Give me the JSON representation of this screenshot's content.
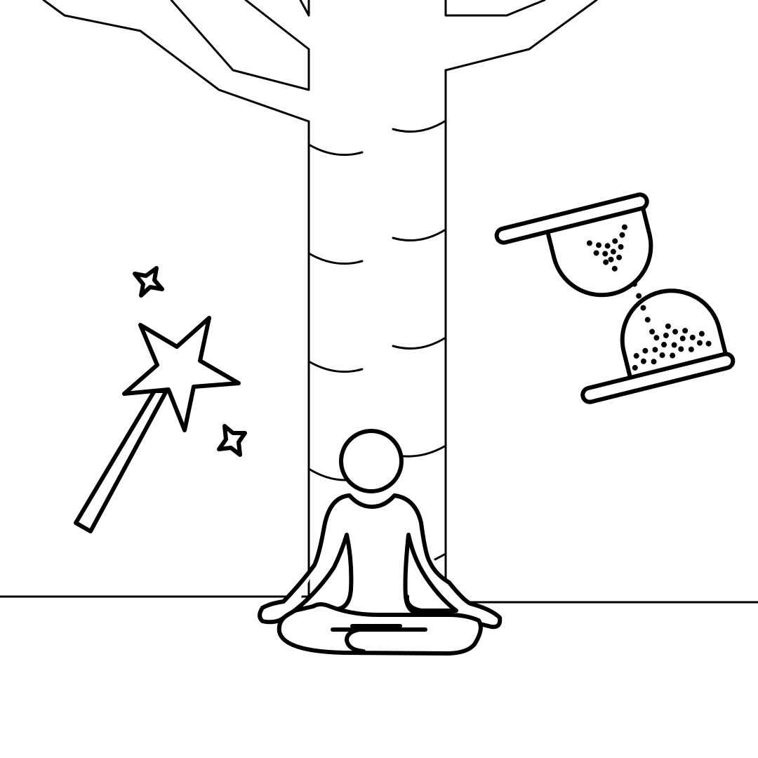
{
  "scene": {
    "background": "#ffffff",
    "ink": "#000000",
    "elements": {
      "tree": "tree-icon",
      "meditator": "meditating-person-icon",
      "wand": "magic-wand-icon",
      "hourglass": "hourglass-icon",
      "sparkles": "sparkle-star-icon"
    }
  }
}
